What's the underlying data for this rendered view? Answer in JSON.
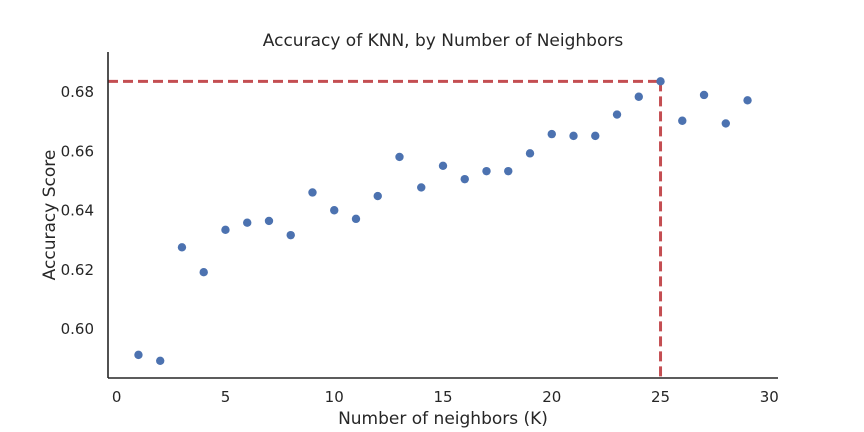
{
  "chart_data": {
    "type": "scatter",
    "title": "Accuracy of KNN, by Number of Neighbors",
    "xlabel": "Number of neighbors (K)",
    "ylabel": "Accuracy Score",
    "xlim": [
      -0.4,
      30.4
    ],
    "ylim": [
      0.5835,
      0.6935
    ],
    "xticks": [
      0,
      5,
      10,
      15,
      20,
      25,
      30
    ],
    "xtick_labels": [
      "0",
      "5",
      "10",
      "15",
      "20",
      "25",
      "30"
    ],
    "yticks": [
      0.6,
      0.62,
      0.64,
      0.66,
      0.68
    ],
    "ytick_labels": [
      "0.60",
      "0.62",
      "0.64",
      "0.66",
      "0.68"
    ],
    "grid": false,
    "marker_color": "#4c72b0",
    "reference_line_color": "#c44e52",
    "reference_point": {
      "x": 25,
      "y": 0.6836
    },
    "points": [
      {
        "x": 1,
        "y": 0.5913
      },
      {
        "x": 2,
        "y": 0.5893
      },
      {
        "x": 3,
        "y": 0.6276
      },
      {
        "x": 4,
        "y": 0.6192
      },
      {
        "x": 5,
        "y": 0.6335
      },
      {
        "x": 6,
        "y": 0.6359
      },
      {
        "x": 7,
        "y": 0.6365
      },
      {
        "x": 8,
        "y": 0.6317
      },
      {
        "x": 9,
        "y": 0.6461
      },
      {
        "x": 10,
        "y": 0.6401
      },
      {
        "x": 11,
        "y": 0.6372
      },
      {
        "x": 12,
        "y": 0.6449
      },
      {
        "x": 13,
        "y": 0.6581
      },
      {
        "x": 14,
        "y": 0.6478
      },
      {
        "x": 15,
        "y": 0.6551
      },
      {
        "x": 16,
        "y": 0.6506
      },
      {
        "x": 17,
        "y": 0.6533
      },
      {
        "x": 18,
        "y": 0.6533
      },
      {
        "x": 19,
        "y": 0.6593
      },
      {
        "x": 20,
        "y": 0.6658
      },
      {
        "x": 21,
        "y": 0.6652
      },
      {
        "x": 22,
        "y": 0.6652
      },
      {
        "x": 23,
        "y": 0.6724
      },
      {
        "x": 24,
        "y": 0.6784
      },
      {
        "x": 25,
        "y": 0.6836
      },
      {
        "x": 26,
        "y": 0.6703
      },
      {
        "x": 27,
        "y": 0.679
      },
      {
        "x": 28,
        "y": 0.6694
      },
      {
        "x": 29,
        "y": 0.6772
      }
    ]
  }
}
